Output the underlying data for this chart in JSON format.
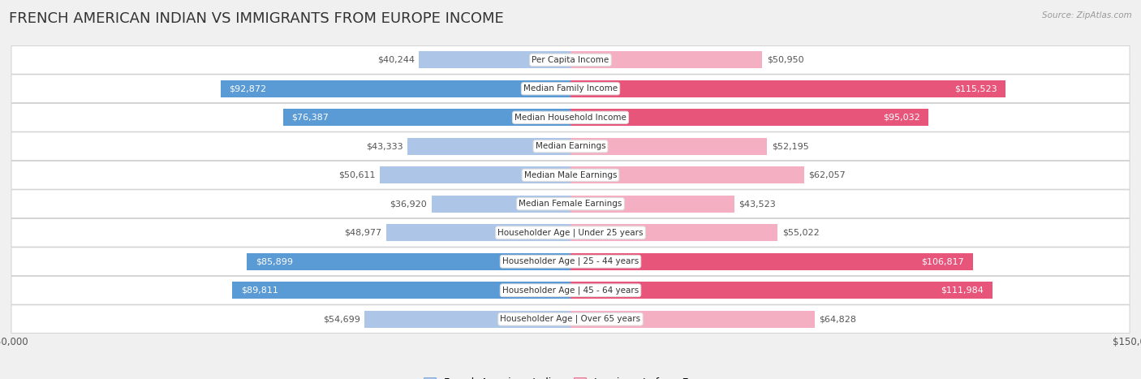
{
  "title": "FRENCH AMERICAN INDIAN VS IMMIGRANTS FROM EUROPE INCOME",
  "source": "Source: ZipAtlas.com",
  "categories": [
    "Per Capita Income",
    "Median Family Income",
    "Median Household Income",
    "Median Earnings",
    "Median Male Earnings",
    "Median Female Earnings",
    "Householder Age | Under 25 years",
    "Householder Age | 25 - 44 years",
    "Householder Age | 45 - 64 years",
    "Householder Age | Over 65 years"
  ],
  "french_values": [
    40244,
    92872,
    76387,
    43333,
    50611,
    36920,
    48977,
    85899,
    89811,
    54699
  ],
  "europe_values": [
    50950,
    115523,
    95032,
    52195,
    62057,
    43523,
    55022,
    106817,
    111984,
    64828
  ],
  "french_color_dark": "#5b9bd5",
  "french_color_light": "#adc6e8",
  "europe_color_dark": "#e8557a",
  "europe_color_light": "#f4afc3",
  "max_value": 150000,
  "label_color_inside": "#ffffff",
  "label_color_outside": "#555555",
  "background_color": "#f0f0f0",
  "row_bg_color": "#ffffff",
  "row_border_color": "#cccccc",
  "title_fontsize": 13,
  "label_fontsize": 8,
  "category_fontsize": 7.5,
  "legend_fontsize": 9,
  "french_dark_threshold": 70000,
  "europe_dark_threshold": 90000
}
